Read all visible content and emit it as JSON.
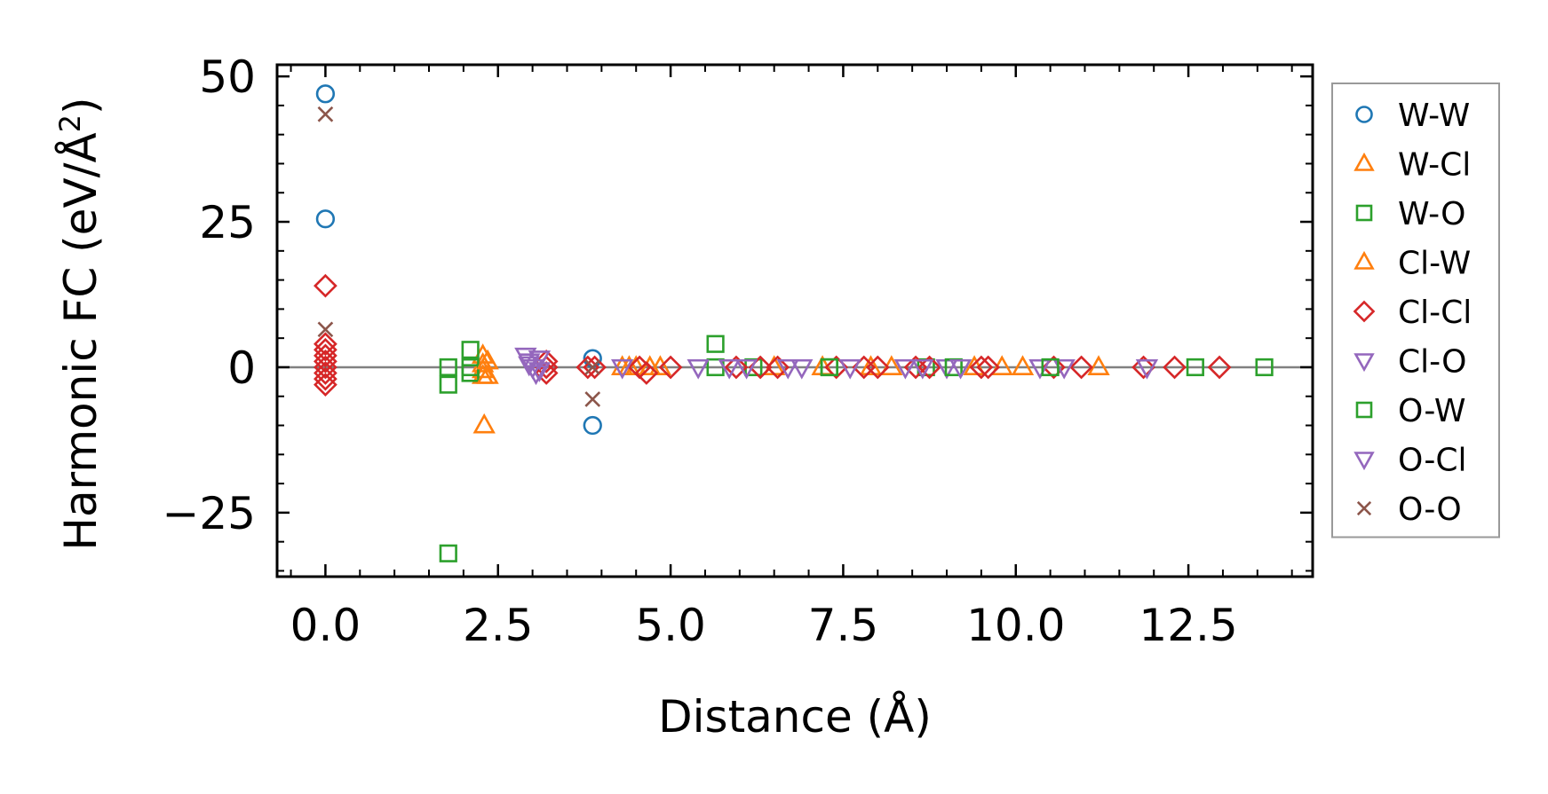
{
  "chart_data": {
    "type": "scatter",
    "title": "",
    "xlabel": "Distance (Å)",
    "ylabel": "Harmonic FC (eV/Å²)",
    "ylabel_main": "Harmonic FC (eV/Å",
    "ylabel_sup": "2",
    "ylabel_close": ")",
    "xlim": [
      -0.7,
      14.3
    ],
    "ylim": [
      -36,
      52
    ],
    "xticks": [
      0.0,
      2.5,
      5.0,
      7.5,
      10.0,
      12.5
    ],
    "xtick_labels": [
      "0.0",
      "2.5",
      "5.0",
      "7.5",
      "10.0",
      "12.5"
    ],
    "yticks": [
      -25,
      0,
      25,
      50
    ],
    "ytick_labels": [
      "−25",
      "0",
      "25",
      "50"
    ],
    "reference_line_y": 0,
    "legend_position": "right outside",
    "series": [
      {
        "name": "W-W",
        "marker": "circle",
        "color": "#1f77b4",
        "points": [
          [
            0,
            47
          ],
          [
            0,
            25.5
          ],
          [
            3.87,
            1.5
          ],
          [
            3.87,
            -10
          ]
        ]
      },
      {
        "name": "W-Cl",
        "marker": "triangle-up",
        "color": "#ff7f0e",
        "points": [
          [
            2.28,
            2
          ],
          [
            2.28,
            0.5
          ],
          [
            2.28,
            -0.5
          ],
          [
            2.28,
            -1.5
          ],
          [
            2.3,
            -10
          ],
          [
            4.3,
            0
          ],
          [
            4.5,
            0
          ],
          [
            4.7,
            0
          ],
          [
            7.2,
            0
          ],
          [
            7.9,
            0
          ],
          [
            9.4,
            0
          ],
          [
            10.1,
            0
          ],
          [
            11.2,
            0
          ]
        ]
      },
      {
        "name": "W-O",
        "marker": "square",
        "color": "#2ca02c",
        "points": [
          [
            1.78,
            -3
          ],
          [
            1.78,
            0
          ],
          [
            2.1,
            3
          ],
          [
            2.1,
            0
          ],
          [
            2.1,
            -1
          ],
          [
            1.78,
            -32
          ],
          [
            5.65,
            4
          ],
          [
            5.65,
            0
          ],
          [
            6.2,
            0
          ],
          [
            7.3,
            0
          ],
          [
            8.7,
            0
          ],
          [
            12.6,
            0
          ],
          [
            13.6,
            0
          ]
        ]
      },
      {
        "name": "Cl-W",
        "marker": "triangle-up",
        "color": "#ff7f0e",
        "points": [
          [
            2.35,
            1
          ],
          [
            2.35,
            -1.5
          ],
          [
            4.4,
            0
          ],
          [
            4.85,
            0
          ],
          [
            6.5,
            0
          ],
          [
            8.2,
            0
          ],
          [
            9.8,
            0
          ]
        ]
      },
      {
        "name": "Cl-Cl",
        "marker": "diamond",
        "color": "#d62728",
        "points": [
          [
            0,
            14
          ],
          [
            0,
            4
          ],
          [
            0,
            3
          ],
          [
            0,
            2
          ],
          [
            0,
            1
          ],
          [
            0,
            0
          ],
          [
            0,
            -1
          ],
          [
            0,
            -2
          ],
          [
            0,
            -3
          ],
          [
            3.2,
            1
          ],
          [
            3.2,
            0
          ],
          [
            3.2,
            -1
          ],
          [
            3.8,
            0
          ],
          [
            3.9,
            0
          ],
          [
            4.55,
            0
          ],
          [
            4.65,
            -1
          ],
          [
            5.0,
            0
          ],
          [
            5.95,
            0
          ],
          [
            6.3,
            0
          ],
          [
            6.55,
            0
          ],
          [
            7.4,
            0
          ],
          [
            7.8,
            0
          ],
          [
            8.0,
            0
          ],
          [
            8.55,
            0
          ],
          [
            8.75,
            0
          ],
          [
            9.5,
            0
          ],
          [
            9.6,
            0
          ],
          [
            10.55,
            0
          ],
          [
            10.95,
            0
          ],
          [
            11.85,
            0
          ],
          [
            12.3,
            0
          ],
          [
            12.95,
            0
          ]
        ]
      },
      {
        "name": "Cl-O",
        "marker": "triangle-down",
        "color": "#9467bd",
        "points": [
          [
            2.9,
            2
          ],
          [
            2.95,
            1
          ],
          [
            3.0,
            0
          ],
          [
            3.05,
            -1
          ],
          [
            4.3,
            0
          ],
          [
            5.4,
            0
          ],
          [
            5.85,
            0
          ],
          [
            6.7,
            0
          ],
          [
            7.6,
            0
          ],
          [
            8.4,
            0
          ],
          [
            9.0,
            0
          ],
          [
            10.35,
            0
          ],
          [
            10.7,
            0
          ],
          [
            11.9,
            0
          ]
        ]
      },
      {
        "name": "O-W",
        "marker": "square",
        "color": "#2ca02c",
        "points": [
          [
            7.3,
            0
          ],
          [
            9.1,
            0
          ],
          [
            10.5,
            0
          ]
        ]
      },
      {
        "name": "O-Cl",
        "marker": "triangle-down",
        "color": "#9467bd",
        "points": [
          [
            2.95,
            0.5
          ],
          [
            3.1,
            1.5
          ],
          [
            3.1,
            -0.5
          ],
          [
            6.1,
            0
          ],
          [
            6.9,
            0
          ],
          [
            8.65,
            0
          ],
          [
            9.2,
            0
          ]
        ]
      },
      {
        "name": "O-O",
        "marker": "x",
        "color": "#8c564b",
        "points": [
          [
            0,
            43.5
          ],
          [
            0,
            6.5
          ],
          [
            3.87,
            -5.5
          ],
          [
            3.87,
            0
          ]
        ]
      }
    ]
  }
}
